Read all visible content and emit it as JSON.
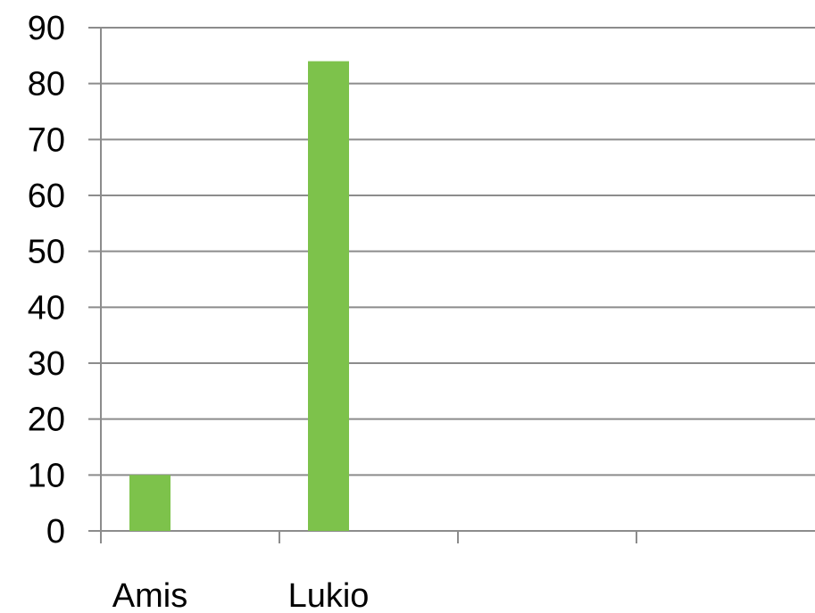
{
  "chart_data": {
    "type": "bar",
    "categories": [
      "Amis",
      "Lukio",
      "",
      ""
    ],
    "values": [
      10,
      84,
      null,
      null
    ],
    "ylim": [
      0,
      90
    ],
    "yticks": [
      0,
      10,
      20,
      30,
      40,
      50,
      60,
      70,
      80,
      90
    ],
    "grid": true,
    "bar_color": "#7dc24b",
    "grid_color": "#8c8c8c"
  }
}
